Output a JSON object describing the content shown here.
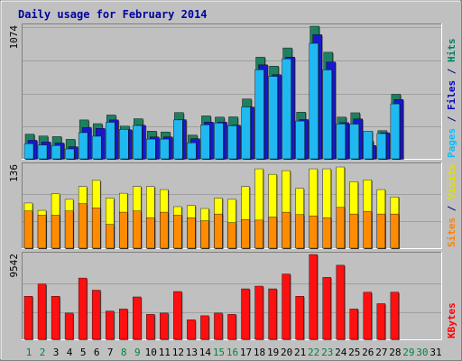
{
  "chart_data": {
    "type": "bar",
    "title": "Daily usage for February 2014",
    "days": [
      "1",
      "2",
      "3",
      "4",
      "5",
      "6",
      "7",
      "8",
      "9",
      "10",
      "11",
      "12",
      "13",
      "14",
      "15",
      "16",
      "17",
      "18",
      "19",
      "20",
      "21",
      "22",
      "23",
      "24",
      "25",
      "26",
      "27",
      "28",
      "29",
      "30",
      "31"
    ],
    "weekend_days": [
      "1",
      "2",
      "8",
      "9",
      "15",
      "16",
      "22",
      "23",
      "29",
      "30"
    ],
    "panels": [
      {
        "id": "traffic",
        "max_label": "1074",
        "ymax": 1074,
        "legend": [
          {
            "text": "Pages",
            "color": "#00c0ff"
          },
          {
            "text": " / ",
            "color": "#000080"
          },
          {
            "text": "Files",
            "color": "#0000c0"
          },
          {
            "text": " / ",
            "color": "#000080"
          },
          {
            "text": "Hits",
            "color": "#008060"
          }
        ],
        "series": [
          {
            "name": "Hits",
            "color": "#1e8060",
            "values": [
              200,
              185,
              180,
              158,
              315,
              285,
              355,
              265,
              325,
              225,
              218,
              375,
              193,
              348,
              338,
              340,
              485,
              823,
              751,
              898,
              378,
              1074,
              863,
              338,
              373,
              143,
              228,
              523
            ]
          },
          {
            "name": "Files",
            "color": "#1818d0",
            "values": [
              150,
              136,
              128,
              98,
              253,
              247,
              315,
              236,
              272,
              177,
              177,
              317,
              163,
              297,
              297,
              272,
              420,
              761,
              681,
              824,
              318,
              1005,
              784,
              293,
              323,
              108,
              211,
              481
            ]
          },
          {
            "name": "Pages",
            "color": "#20b8f0",
            "values": [
              123,
              112,
              108,
              80,
              212,
              183,
              296,
              238,
              270,
              160,
              160,
              315,
              130,
              275,
              290,
              268,
              420,
              722,
              668,
              810,
              306,
              935,
              720,
              283,
              281,
              225,
              205,
              445
            ]
          }
        ]
      },
      {
        "id": "visits",
        "max_label": "136",
        "ymax": 136,
        "legend": [
          {
            "text": "Sites",
            "color": "#ff8000"
          },
          {
            "text": " / ",
            "color": "#000080"
          },
          {
            "text": "Visits",
            "color": "#e0e000"
          }
        ],
        "series": [
          {
            "name": "Visits",
            "color": "#ffff00",
            "values": [
              74,
              62,
              89,
              80,
              101,
              111,
              82,
              90,
              101,
              101,
              96,
              68,
              70,
              65,
              82,
              80,
              101,
              130,
              121,
              127,
              98,
              130,
              130,
              133,
              109,
              112,
              96,
              84
            ]
          },
          {
            "name": "Sites",
            "color": "#ff8c00",
            "values": [
              61,
              54,
              54,
              61,
              73,
              66,
              39,
              59,
              61,
              50,
              59,
              54,
              50,
              45,
              56,
              42,
              47,
              46,
              51,
              59,
              55,
              53,
              50,
              67,
              56,
              60,
              56,
              56
            ]
          }
        ]
      },
      {
        "id": "kbytes",
        "max_label": "9542",
        "ymax": 9542,
        "legend": [
          {
            "text": "KBytes",
            "color": "#ff0000"
          }
        ],
        "series": [
          {
            "name": "KBytes",
            "color": "#ff1010",
            "values": [
              4849,
              6212,
              4849,
              2957,
              6894,
              5530,
              3184,
              3412,
              4773,
              2805,
              2957,
              5379,
              2198,
              2653,
              2957,
              2805,
              5682,
              5985,
              5682,
              7349,
              4849,
              9542,
              6970,
              8334,
              3412,
              5303,
              4015,
              5303
            ]
          }
        ]
      }
    ]
  }
}
